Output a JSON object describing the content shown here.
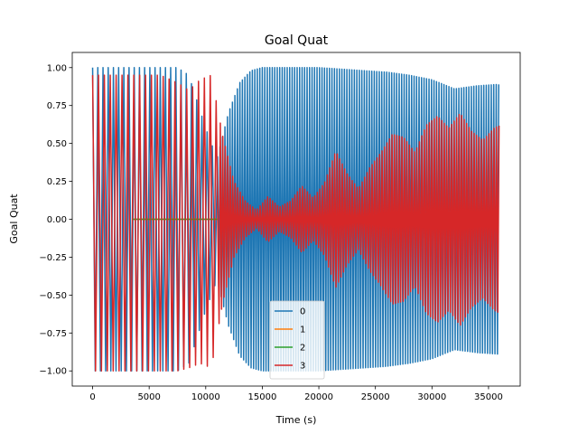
{
  "chart_data": {
    "type": "line",
    "title": "Goal Quat",
    "xlabel": "Time (s)",
    "ylabel": "Goal Quat",
    "xlim": [
      -1800,
      37800
    ],
    "ylim": [
      -1.1,
      1.1
    ],
    "xticks": [
      0,
      5000,
      10000,
      15000,
      20000,
      25000,
      30000,
      35000
    ],
    "xtick_labels": [
      "0",
      "5000",
      "10000",
      "15000",
      "20000",
      "25000",
      "30000",
      "35000"
    ],
    "yticks": [
      -1.0,
      -0.75,
      -0.5,
      -0.25,
      0.0,
      0.25,
      0.5,
      0.75,
      1.0
    ],
    "ytick_labels": [
      "−1.00",
      "−0.75",
      "−0.50",
      "−0.25",
      "0.00",
      "0.25",
      "0.50",
      "0.75",
      "1.00"
    ],
    "grid": false,
    "legend_position": "lower-center",
    "series": [
      {
        "name": "0",
        "color": "#1f77b4",
        "style": "oscillating-envelope",
        "envelope_x": [
          0,
          2000,
          4000,
          6000,
          7500,
          8500,
          10000,
          11000,
          12000,
          13000,
          14000,
          15000,
          16500,
          18000,
          20000,
          22000,
          24000,
          26000,
          28000,
          30000,
          32000,
          34000,
          36000
        ],
        "envelope_upper": [
          1.0,
          1.0,
          1.0,
          1.0,
          1.0,
          0.95,
          0.6,
          0.4,
          0.7,
          0.9,
          0.98,
          1.0,
          1.0,
          1.0,
          1.0,
          0.99,
          0.98,
          0.97,
          0.95,
          0.92,
          0.86,
          0.88,
          0.89
        ],
        "envelope_lower": [
          -1.0,
          -1.0,
          -1.0,
          -1.0,
          -1.0,
          -0.95,
          -0.6,
          -0.4,
          -0.7,
          -0.9,
          -0.98,
          -1.0,
          -1.0,
          -1.0,
          -1.0,
          -0.99,
          -0.98,
          -0.97,
          -0.95,
          -0.92,
          -0.86,
          -0.88,
          -0.89
        ]
      },
      {
        "name": "1",
        "color": "#ff7f0e",
        "style": "flat",
        "x": [
          3500,
          11000
        ],
        "y": [
          0.0,
          0.0
        ]
      },
      {
        "name": "2",
        "color": "#2ca02c",
        "style": "flat",
        "x": [
          3500,
          11000
        ],
        "y": [
          0.0,
          0.0
        ]
      },
      {
        "name": "3",
        "color": "#d62728",
        "style": "oscillating-envelope",
        "envelope_x": [
          0,
          2000,
          4000,
          6000,
          7500,
          8500,
          9500,
          10500,
          11500,
          12500,
          13500,
          14500,
          15500,
          16500,
          17500,
          18500,
          19500,
          20500,
          21500,
          22500,
          23500,
          24500,
          25500,
          26500,
          27500,
          28500,
          29500,
          30500,
          31500,
          32500,
          33500,
          34500,
          35500,
          36000
        ],
        "envelope_upper": [
          0.95,
          0.95,
          0.95,
          0.95,
          0.9,
          0.85,
          0.92,
          0.95,
          0.55,
          0.25,
          0.12,
          0.06,
          0.15,
          0.08,
          0.12,
          0.22,
          0.14,
          0.24,
          0.45,
          0.3,
          0.2,
          0.34,
          0.44,
          0.56,
          0.54,
          0.44,
          0.62,
          0.68,
          0.6,
          0.7,
          0.58,
          0.52,
          0.6,
          0.62
        ],
        "envelope_lower": [
          -1.0,
          -1.0,
          -1.0,
          -1.0,
          -1.0,
          -0.98,
          -0.95,
          -0.98,
          -0.55,
          -0.25,
          -0.12,
          -0.06,
          -0.15,
          -0.08,
          -0.12,
          -0.22,
          -0.14,
          -0.24,
          -0.45,
          -0.3,
          -0.2,
          -0.34,
          -0.44,
          -0.56,
          -0.54,
          -0.44,
          -0.62,
          -0.68,
          -0.6,
          -0.7,
          -0.58,
          -0.52,
          -0.6,
          -0.62
        ]
      }
    ]
  }
}
